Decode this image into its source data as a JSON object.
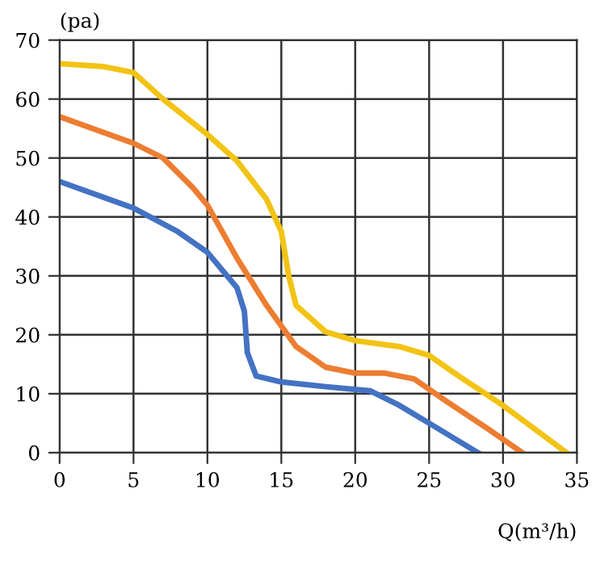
{
  "chart_data": {
    "type": "line",
    "xlabel": "Q(m³/h)",
    "ylabel": "(pa)",
    "xlim": [
      0,
      35
    ],
    "ylim": [
      0,
      70
    ],
    "xticks": [
      0,
      5,
      10,
      15,
      20,
      25,
      30,
      35
    ],
    "yticks": [
      0,
      10,
      20,
      30,
      40,
      50,
      60,
      70
    ],
    "grid": true,
    "legend": false,
    "line_style": "solid",
    "series": [
      {
        "color": "#4472c4",
        "x": [
          0,
          5,
          8,
          10,
          12,
          12.5,
          12.7,
          13.3,
          15,
          18,
          21,
          23,
          25,
          28.3
        ],
        "values": [
          46,
          41.5,
          37.5,
          34,
          28,
          24,
          17,
          13,
          12,
          11.2,
          10.5,
          8,
          5,
          0
        ]
      },
      {
        "color": "#ed7d31",
        "x": [
          0,
          5,
          7,
          9,
          10,
          12,
          14,
          16,
          18,
          20,
          22,
          24,
          26,
          29,
          31.3
        ],
        "values": [
          57,
          52.5,
          50,
          45,
          42,
          33,
          25,
          18,
          14.5,
          13.5,
          13.5,
          12.5,
          9,
          4,
          0
        ]
      },
      {
        "color": "#f2c314",
        "x": [
          0,
          3,
          5,
          7,
          9,
          10,
          12,
          14,
          15,
          15.5,
          16,
          18,
          20,
          23,
          25,
          27,
          30,
          34.3
        ],
        "values": [
          66,
          65.5,
          64.5,
          60,
          56,
          54,
          49.5,
          43,
          37.5,
          30,
          25,
          20.5,
          19,
          18,
          16.5,
          13,
          8,
          0
        ]
      }
    ]
  }
}
